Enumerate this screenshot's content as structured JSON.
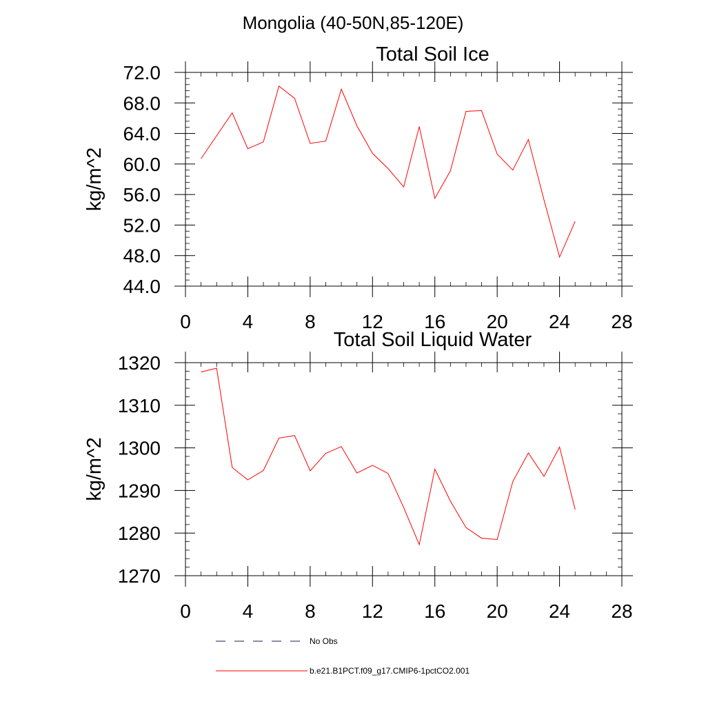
{
  "header": {
    "title": "Mongolia (40-50N,85-120E)"
  },
  "colors": {
    "model": "#ff0000",
    "obs": "#1a1a4e"
  },
  "legend": {
    "items": [
      {
        "label": "No Obs",
        "style": "dashed",
        "color": "#1a1a4e"
      },
      {
        "label": "b.e21.B1PCT.f09_g17.CMIP6-1pctCO2.001",
        "style": "solid",
        "color": "#ff0000"
      }
    ]
  },
  "chart_data": [
    {
      "type": "line",
      "title": "Total Soil Ice",
      "xlabel": "",
      "ylabel": "kg/m^2",
      "xlim": [
        0,
        28
      ],
      "ylim": [
        44,
        72
      ],
      "xticks": [
        "0",
        "4",
        "8",
        "12",
        "16",
        "20",
        "24",
        "28"
      ],
      "yticks": [
        "44.0",
        "48.0",
        "52.0",
        "56.0",
        "60.0",
        "64.0",
        "68.0",
        "72.0"
      ],
      "series": [
        {
          "name": "b.e21.B1PCT.f09_g17.CMIP6-1pctCO2.001",
          "x": [
            1,
            2,
            3,
            4,
            5,
            6,
            7,
            8,
            9,
            10,
            11,
            12,
            13,
            14,
            15,
            16,
            17,
            18,
            19,
            20,
            21,
            22,
            23,
            24,
            25
          ],
          "values": [
            60.7,
            63.7,
            66.7,
            62.0,
            62.9,
            70.2,
            68.6,
            62.7,
            63.0,
            69.8,
            65.0,
            61.4,
            59.4,
            57.0,
            64.9,
            55.5,
            59.1,
            66.9,
            67.0,
            61.3,
            59.2,
            63.2,
            55.3,
            47.8,
            52.5
          ]
        }
      ]
    },
    {
      "type": "line",
      "title": "Total Soil Liquid Water",
      "xlabel": "",
      "ylabel": "kg/m^2",
      "xlim": [
        0,
        28
      ],
      "ylim": [
        1270,
        1320
      ],
      "xticks": [
        "0",
        "4",
        "8",
        "12",
        "16",
        "20",
        "24",
        "28"
      ],
      "yticks": [
        "1270",
        "1280",
        "1290",
        "1300",
        "1310",
        "1320"
      ],
      "series": [
        {
          "name": "b.e21.B1PCT.f09_g17.CMIP6-1pctCO2.001",
          "x": [
            1,
            2,
            3,
            4,
            5,
            6,
            7,
            8,
            9,
            10,
            11,
            12,
            13,
            14,
            15,
            16,
            17,
            18,
            19,
            20,
            21,
            22,
            23,
            24,
            25
          ],
          "values": [
            1317.8,
            1318.7,
            1295.4,
            1292.5,
            1294.7,
            1302.3,
            1302.9,
            1294.6,
            1298.7,
            1300.3,
            1294.1,
            1295.9,
            1294.0,
            1286.0,
            1277.3,
            1295.0,
            1287.5,
            1281.3,
            1278.8,
            1278.5,
            1292.1,
            1298.8,
            1293.3,
            1300.2,
            1285.5
          ]
        }
      ]
    }
  ]
}
